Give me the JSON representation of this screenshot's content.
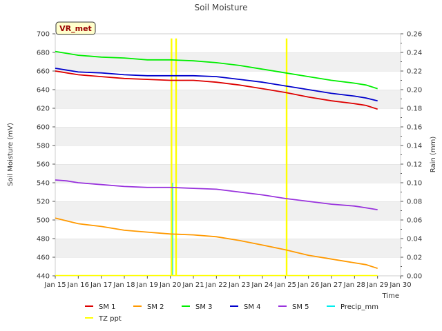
{
  "chart_data": {
    "type": "line",
    "title": "Soil Moisture",
    "badge": "VR_met",
    "xlabel": "Time",
    "ylabel": "Soil Moisture (mV)",
    "ylabel_right": "Rain (mm)",
    "ylim": [
      440,
      700
    ],
    "ylim_right": [
      0.0,
      0.26
    ],
    "xlim": [
      15,
      30
    ],
    "yticks": [
      "440",
      "460",
      "480",
      "500",
      "520",
      "540",
      "560",
      "580",
      "600",
      "620",
      "640",
      "660",
      "680",
      "700"
    ],
    "yticks_right": [
      "0.00",
      "0.02",
      "0.04",
      "0.06",
      "0.08",
      "0.10",
      "0.12",
      "0.14",
      "0.16",
      "0.18",
      "0.20",
      "0.22",
      "0.24",
      "0.26"
    ],
    "xticks": [
      "Jan 15",
      "Jan 16",
      "Jan 17",
      "Jan 18",
      "Jan 19",
      "Jan 20",
      "Jan 21",
      "Jan 22",
      "Jan 23",
      "Jan 24",
      "Jan 25",
      "Jan 26",
      "Jan 27",
      "Jan 28",
      "Jan 29",
      "Jan 30"
    ],
    "series": [
      {
        "name": "SM 1",
        "color": "#dd0000",
        "axis": "left",
        "x": [
          15.0,
          15.5,
          16.0,
          17.0,
          18.0,
          19.0,
          20.0,
          21.0,
          22.0,
          23.0,
          24.0,
          25.0,
          26.0,
          27.0,
          28.0,
          28.5,
          29.0
        ],
        "values": [
          660,
          658,
          656,
          654,
          652,
          651,
          650,
          650,
          648,
          645,
          641,
          637,
          632,
          628,
          625,
          623,
          619
        ]
      },
      {
        "name": "SM 2",
        "color": "#ff9900",
        "axis": "left",
        "x": [
          15.0,
          15.5,
          16.0,
          17.0,
          18.0,
          19.0,
          20.0,
          21.0,
          22.0,
          23.0,
          24.0,
          25.0,
          26.0,
          27.0,
          28.0,
          28.5,
          29.0
        ],
        "values": [
          502,
          499,
          496,
          493,
          489,
          487,
          485,
          484,
          482,
          478,
          473,
          468,
          462,
          458,
          454,
          452,
          448
        ]
      },
      {
        "name": "SM 3",
        "color": "#00ee00",
        "axis": "left",
        "x": [
          15.0,
          15.5,
          16.0,
          17.0,
          18.0,
          19.0,
          20.0,
          21.0,
          22.0,
          23.0,
          24.0,
          25.0,
          26.0,
          27.0,
          28.0,
          28.5,
          29.0
        ],
        "values": [
          681,
          679,
          677,
          675,
          674,
          672,
          672,
          671,
          669,
          666,
          662,
          658,
          654,
          650,
          647,
          645,
          641
        ]
      },
      {
        "name": "SM 4",
        "color": "#0000cc",
        "axis": "left",
        "x": [
          15.0,
          15.5,
          16.0,
          17.0,
          18.0,
          19.0,
          20.0,
          21.0,
          22.0,
          23.0,
          24.0,
          25.0,
          26.0,
          27.0,
          28.0,
          28.5,
          29.0
        ],
        "values": [
          663,
          661,
          659,
          658,
          656,
          655,
          655,
          655,
          654,
          651,
          648,
          644,
          640,
          636,
          633,
          631,
          628
        ]
      },
      {
        "name": "SM 5",
        "color": "#9933dd",
        "axis": "left",
        "x": [
          15.0,
          15.5,
          16.0,
          17.0,
          18.0,
          19.0,
          20.0,
          21.0,
          22.0,
          23.0,
          24.0,
          25.0,
          26.0,
          27.0,
          28.0,
          28.5,
          29.0
        ],
        "values": [
          543,
          542,
          540,
          538,
          536,
          535,
          535,
          534,
          533,
          530,
          527,
          523,
          520,
          517,
          515,
          513,
          511
        ]
      },
      {
        "name": "Precip_mm",
        "color": "#00eeee",
        "axis": "right",
        "x": [
          20.1
        ],
        "values": [
          0.1
        ]
      },
      {
        "name": "TZ ppt",
        "color": "#ffff00",
        "axis": "right",
        "x": [
          20.05,
          20.25,
          25.05
        ],
        "values": [
          0.255,
          0.255,
          0.255
        ]
      }
    ],
    "legend": [
      "SM 1",
      "SM 2",
      "SM 3",
      "SM 4",
      "SM 5",
      "Precip_mm",
      "TZ ppt"
    ]
  }
}
